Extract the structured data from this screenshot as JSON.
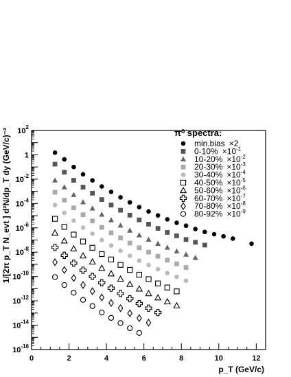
{
  "chart_data": {
    "type": "scatter",
    "title": "",
    "xlabel": "p_T (GeV/c)",
    "ylabel": "1/[2π p_T N_evt ] d²N/dp_T dy (GeV/c)⁻²",
    "xlim": [
      0,
      12.5
    ],
    "ylim": [
      1e-16,
      100
    ],
    "y_scale": "log",
    "grid": false,
    "x_ticks": [
      0,
      2,
      4,
      6,
      8,
      10,
      12
    ],
    "y_ticks": [
      {
        "base": "10",
        "exp": "2"
      },
      {
        "base": "1",
        "exp": ""
      },
      {
        "base": "10",
        "exp": "-2"
      },
      {
        "base": "10",
        "exp": "-4"
      },
      {
        "base": "10",
        "exp": "-6"
      },
      {
        "base": "10",
        "exp": "-8"
      },
      {
        "base": "10",
        "exp": "-10"
      },
      {
        "base": "10",
        "exp": "-12"
      },
      {
        "base": "10",
        "exp": "-14"
      },
      {
        "base": "10",
        "exp": "-16"
      }
    ],
    "legend": {
      "title": "π⁰ spectra:",
      "placement": "top-right",
      "entries": [
        {
          "label": "min.bias",
          "factor": "×2",
          "exp": ""
        },
        {
          "label": "0-10%",
          "factor": "×10",
          "exp": "-1"
        },
        {
          "label": "10-20%",
          "factor": "×10",
          "exp": "-2"
        },
        {
          "label": "20-30%",
          "factor": "×10",
          "exp": "-3"
        },
        {
          "label": "30-40%",
          "factor": "×10",
          "exp": "-4"
        },
        {
          "label": "40-50%",
          "factor": "×10",
          "exp": "-5"
        },
        {
          "label": "50-60%",
          "factor": "×10",
          "exp": "-6"
        },
        {
          "label": "60-70%",
          "factor": "×10",
          "exp": "-7"
        },
        {
          "label": "70-80%",
          "factor": "×10",
          "exp": "-8"
        },
        {
          "label": "80-92%",
          "factor": "×10",
          "exp": "-9"
        }
      ]
    },
    "series": [
      {
        "marker": "filled-circle",
        "color": "#000000",
        "x": [
          1.25,
          1.75,
          2.25,
          2.75,
          3.25,
          3.75,
          4.25,
          4.75,
          5.25,
          5.75,
          6.25,
          6.75,
          7.25,
          7.75,
          8.25,
          8.75,
          9.25,
          9.75,
          10.25,
          10.75,
          11.75
        ],
        "y": [
          1.5,
          0.42,
          0.1,
          0.025,
          0.0079,
          0.0025,
          0.0009,
          0.00032,
          0.000125,
          5e-05,
          2.2e-05,
          1.05e-05,
          5e-06,
          2.6e-06,
          1.5e-06,
          8e-07,
          4.6e-07,
          3e-07,
          2e-07,
          1.3e-07,
          5e-08
        ]
      },
      {
        "marker": "filled-square",
        "color": "#555555",
        "x": [
          1.25,
          1.75,
          2.25,
          2.75,
          3.25,
          3.75,
          4.25,
          4.75,
          5.25,
          5.75,
          6.25,
          6.75,
          7.25,
          7.75,
          8.25,
          8.75,
          9.25
        ],
        "y": [
          0.17,
          0.037,
          0.008,
          0.0022,
          0.0007,
          0.00021,
          7.5e-05,
          2.8e-05,
          1.1e-05,
          4.5e-06,
          2e-06,
          9e-07,
          4.2e-07,
          2.2e-07,
          1.1e-07,
          6.5e-08,
          3.8e-08
        ]
      },
      {
        "marker": "filled-triangle",
        "color": "#666666",
        "x": [
          1.25,
          1.75,
          2.25,
          2.75,
          3.25,
          3.75,
          4.25,
          4.75,
          5.25,
          5.75,
          6.25,
          6.75,
          7.25,
          7.75,
          8.25,
          8.75
        ],
        "y": [
          0.008,
          0.0022,
          0.00052,
          0.00013,
          4e-05,
          1.25e-05,
          4.4e-06,
          1.6e-06,
          6.1e-07,
          2.5e-07,
          1.1e-07,
          5e-08,
          2.4e-08,
          1.2e-08,
          6.5e-09,
          3.5e-09
        ]
      },
      {
        "marker": "filled-square",
        "color": "#aaaaaa",
        "x": [
          1.25,
          1.75,
          2.25,
          2.75,
          3.25,
          3.75,
          4.25,
          4.75,
          5.25,
          5.75,
          6.25,
          6.75,
          7.25,
          7.75,
          8.25
        ],
        "y": [
          0.00085,
          0.00019,
          4.4e-05,
          1.2e-05,
          3.7e-06,
          1.1e-06,
          3.9e-07,
          1.5e-07,
          5.6e-08,
          2.3e-08,
          1e-08,
          4.6e-09,
          2.2e-09,
          1.1e-09,
          5.5e-10
        ]
      },
      {
        "marker": "filled-circle",
        "color": "#bbbbbb",
        "x": [
          1.25,
          1.75,
          2.25,
          2.75,
          3.25,
          3.75,
          4.25,
          4.75,
          5.25,
          5.75,
          6.25,
          6.75,
          7.25,
          7.75,
          8.25
        ],
        "y": [
          7.5e-05,
          1.7e-05,
          3.9e-06,
          1.05e-06,
          3.3e-07,
          1e-07,
          3.5e-08,
          1.3e-08,
          5e-09,
          2e-09,
          8.8e-10,
          4e-10,
          1.9e-10,
          9.5e-11,
          4.5e-11
        ]
      },
      {
        "marker": "open-square",
        "color": "#000000",
        "x": [
          1.25,
          1.75,
          2.25,
          2.75,
          3.25,
          3.75,
          4.25,
          4.75,
          5.25,
          5.75,
          6.25,
          6.75,
          7.25,
          7.75
        ],
        "y": [
          5.5e-06,
          1.2e-06,
          2.8e-07,
          7.5e-08,
          2.3e-08,
          7e-09,
          2.5e-09,
          9e-10,
          3.5e-10,
          1.4e-10,
          6e-11,
          2.7e-11,
          1.25e-11,
          6e-12
        ]
      },
      {
        "marker": "open-triangle",
        "color": "#000000",
        "x": [
          1.25,
          1.75,
          2.25,
          2.75,
          3.25,
          3.75,
          4.25,
          4.75,
          5.25,
          5.75,
          6.25,
          6.75,
          7.25,
          7.75
        ],
        "y": [
          3.8e-07,
          8.5e-08,
          1.9e-08,
          5e-09,
          1.6e-09,
          4.8e-10,
          1.7e-10,
          6.2e-11,
          2.3e-11,
          9.5e-12,
          4e-12,
          1.8e-12,
          8.5e-13,
          4e-13
        ]
      },
      {
        "marker": "open-cross",
        "color": "#000000",
        "x": [
          1.25,
          1.75,
          2.25,
          2.75,
          3.25,
          3.75,
          4.25,
          4.75,
          5.25,
          5.75,
          6.25,
          6.75
        ],
        "y": [
          2.5e-08,
          5.5e-09,
          1.25e-09,
          3.3e-10,
          1.02e-10,
          3.1e-11,
          1.1e-11,
          4e-12,
          1.5e-12,
          6e-13,
          2.5e-13,
          1.1e-13
        ]
      },
      {
        "marker": "open-diamond",
        "color": "#000000",
        "x": [
          1.25,
          1.75,
          2.25,
          2.75,
          3.25,
          3.75,
          4.25,
          4.75,
          5.25,
          5.75,
          6.25
        ],
        "y": [
          1.5e-09,
          3.4e-10,
          7.6e-11,
          2e-11,
          6.2e-12,
          1.9e-12,
          6.7e-13,
          2.5e-13,
          9.5e-14,
          3.8e-14,
          1.6e-14
        ]
      },
      {
        "marker": "open-circle",
        "color": "#000000",
        "x": [
          1.25,
          1.75,
          2.25,
          2.75,
          3.25,
          3.75,
          4.25,
          4.75,
          5.25,
          5.75
        ],
        "y": [
          9e-11,
          2e-11,
          4.6e-12,
          1.2e-12,
          3.7e-13,
          1.1e-13,
          4e-14,
          1.5e-14,
          5.7e-15,
          2.3e-15
        ]
      }
    ]
  }
}
